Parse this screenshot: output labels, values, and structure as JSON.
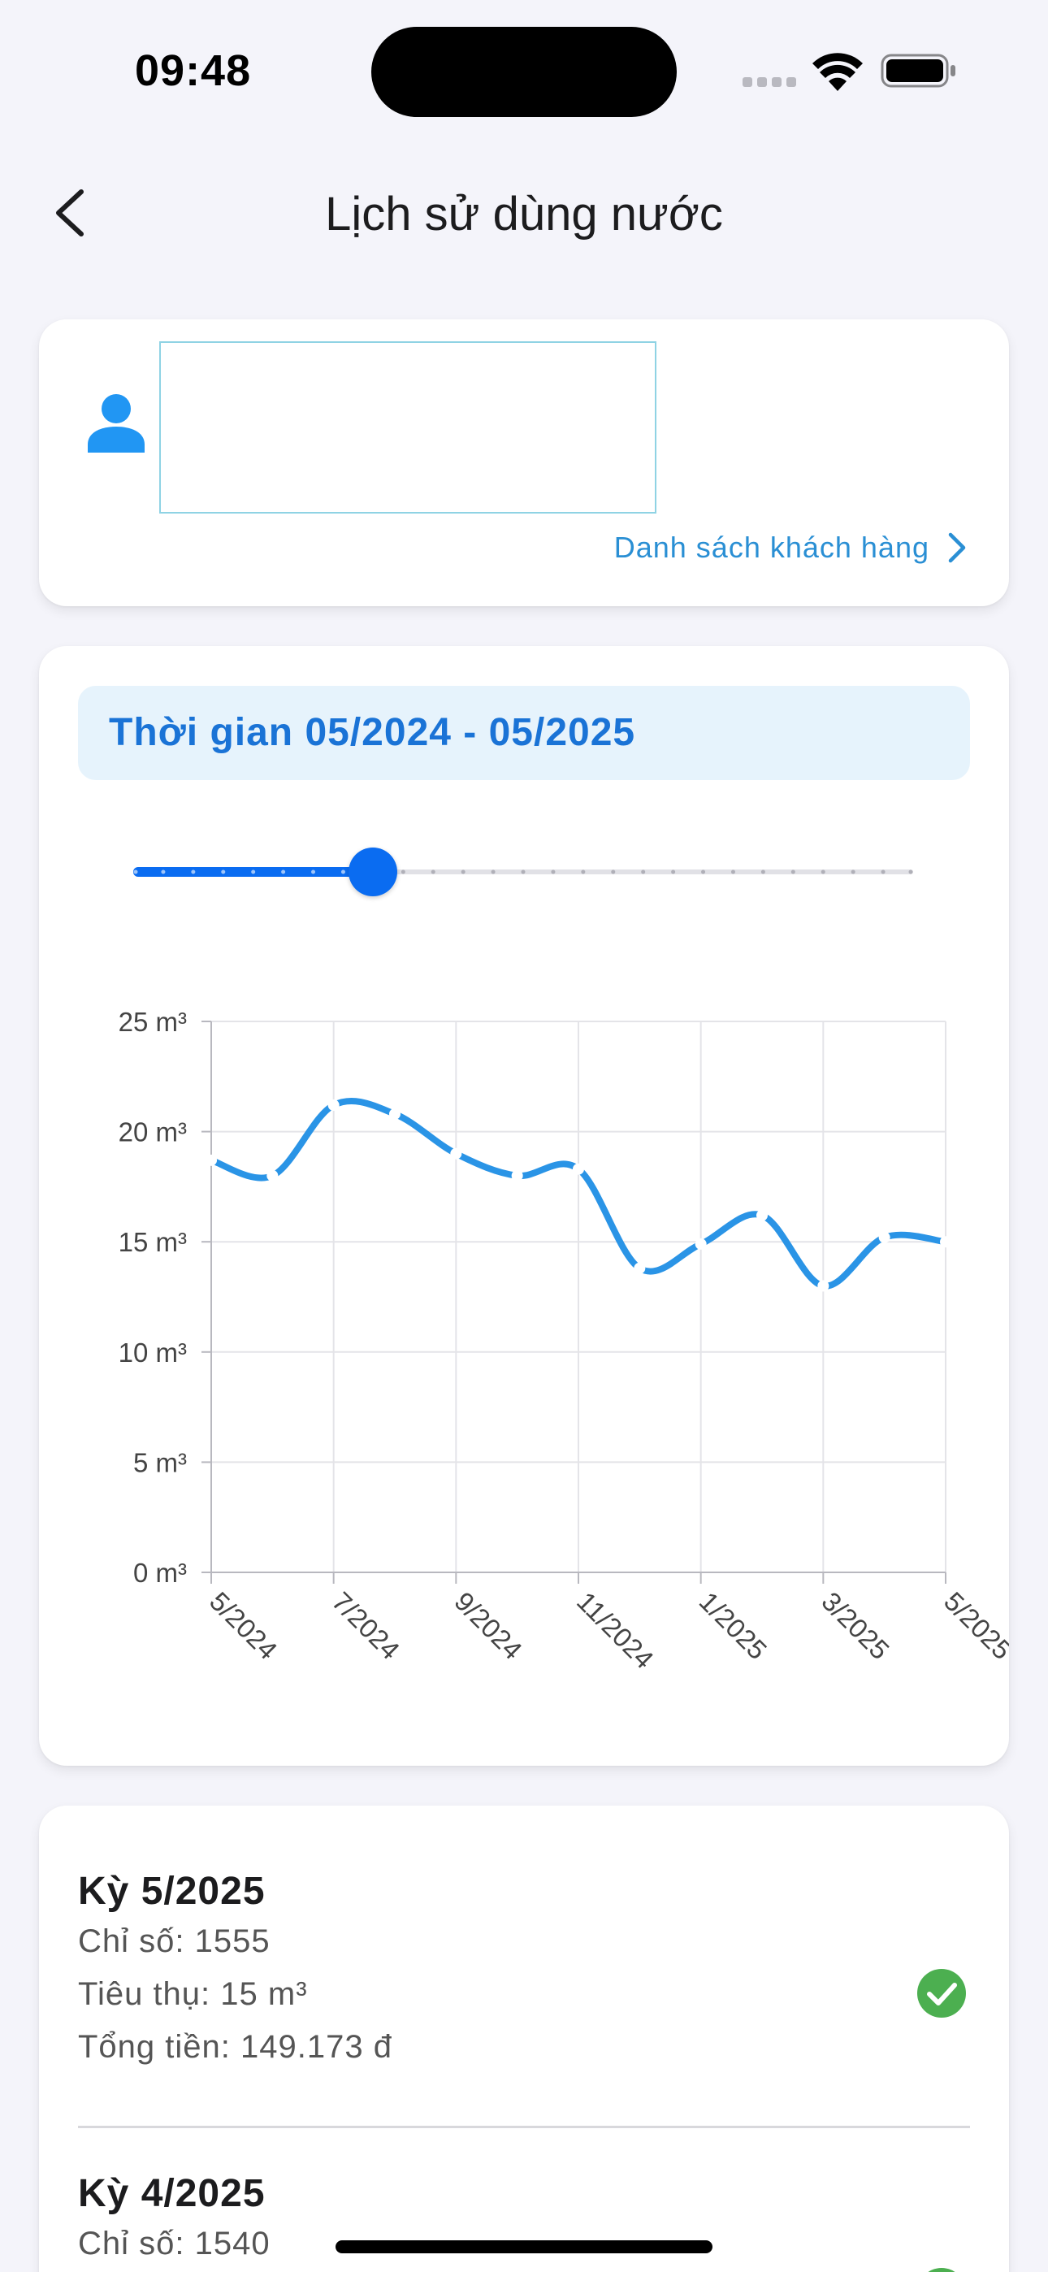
{
  "status_bar": {
    "time": "09:48"
  },
  "header": {
    "title": "Lịch sử dùng nước"
  },
  "customer": {
    "list_link": "Danh sách khách hàng"
  },
  "period": {
    "label": "Thời gian 05/2024 - 05/2025"
  },
  "slider": {
    "steps": 27,
    "value_step": 8
  },
  "colors": {
    "accent": "#0a6cf1",
    "line": "#2a94e6",
    "paid": "#4caf50"
  },
  "chart_data": {
    "type": "line",
    "title": "",
    "xlabel": "",
    "ylabel": "",
    "ylim": [
      0,
      25
    ],
    "yticks": [
      0,
      5,
      10,
      15,
      20,
      25
    ],
    "ytick_labels": [
      "0 m³",
      "5 m³",
      "10 m³",
      "15 m³",
      "20 m³",
      "25 m³"
    ],
    "x": [
      "5/2024",
      "6/2024",
      "7/2024",
      "8/2024",
      "9/2024",
      "10/2024",
      "11/2024",
      "12/2024",
      "1/2025",
      "2/2025",
      "3/2025",
      "4/2025",
      "5/2025"
    ],
    "xtick_labels": [
      "5/2024",
      "7/2024",
      "9/2024",
      "11/2024",
      "1/2025",
      "3/2025",
      "5/2025"
    ],
    "series": [
      {
        "values": [
          18.7,
          18.0,
          21.2,
          20.8,
          19.0,
          18.0,
          18.3,
          13.8,
          14.9,
          16.2,
          13.0,
          15.2,
          15.0
        ]
      }
    ],
    "grid": true
  },
  "history": [
    {
      "title": "Kỳ 5/2025",
      "index": "Chỉ số: 1555",
      "consumption": "Tiêu thụ: 15 m³",
      "total": "Tổng tiền: 149.173 đ"
    },
    {
      "title": "Kỳ 4/2025",
      "index": "Chỉ số: 1540"
    }
  ]
}
